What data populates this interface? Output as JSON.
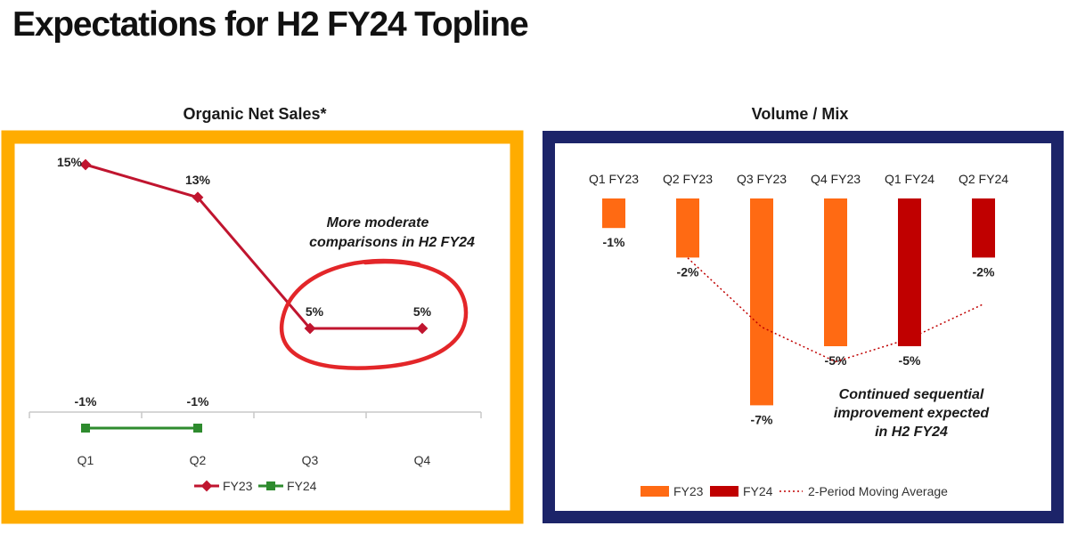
{
  "page": {
    "title": "Expectations for H2 FY24 Topline"
  },
  "colors": {
    "fy23_line": "#c0152f",
    "fy24_line": "#2e8b2e",
    "left_frame": "#ffac00",
    "right_frame": "#1c2469",
    "fy23_bar": "#ff6a13",
    "fy24_bar": "#c00000",
    "annotation_circle": "#e32629"
  },
  "chart_data": [
    {
      "type": "line",
      "title": "Organic Net Sales*",
      "categories": [
        "Q1",
        "Q2",
        "Q3",
        "Q4"
      ],
      "series": [
        {
          "name": "FY23",
          "values": [
            15,
            13,
            5,
            5
          ],
          "labels": [
            "15%",
            "13%",
            "5%",
            "5%"
          ]
        },
        {
          "name": "FY24",
          "values": [
            -1,
            -1,
            null,
            null
          ],
          "labels": [
            "-1%",
            "-1%"
          ]
        }
      ],
      "annotation": [
        "More moderate",
        "comparisons in H2 FY24"
      ],
      "legend_position": "bottom"
    },
    {
      "type": "bar",
      "title": "Volume / Mix",
      "categories": [
        "Q1 FY23",
        "Q2 FY23",
        "Q3 FY23",
        "Q4 FY23",
        "Q1 FY24",
        "Q2 FY24"
      ],
      "values": [
        -1,
        -2,
        -7,
        -5,
        -5,
        -2
      ],
      "labels": [
        "-1%",
        "-2%",
        "-7%",
        "-5%",
        "-5%",
        "-2%"
      ],
      "series_of_bar": [
        "FY23",
        "FY23",
        "FY23",
        "FY23",
        "FY24",
        "FY24"
      ],
      "moving_average": {
        "name": "2-Period Moving Average",
        "values": [
          null,
          -1.5,
          -4.5,
          -6,
          -5,
          -3.5
        ]
      },
      "legend": [
        "FY23",
        "FY24",
        "2-Period Moving Average"
      ],
      "annotation": [
        "Continued sequential",
        "improvement expected",
        "in H2 FY24"
      ],
      "legend_position": "bottom"
    }
  ]
}
